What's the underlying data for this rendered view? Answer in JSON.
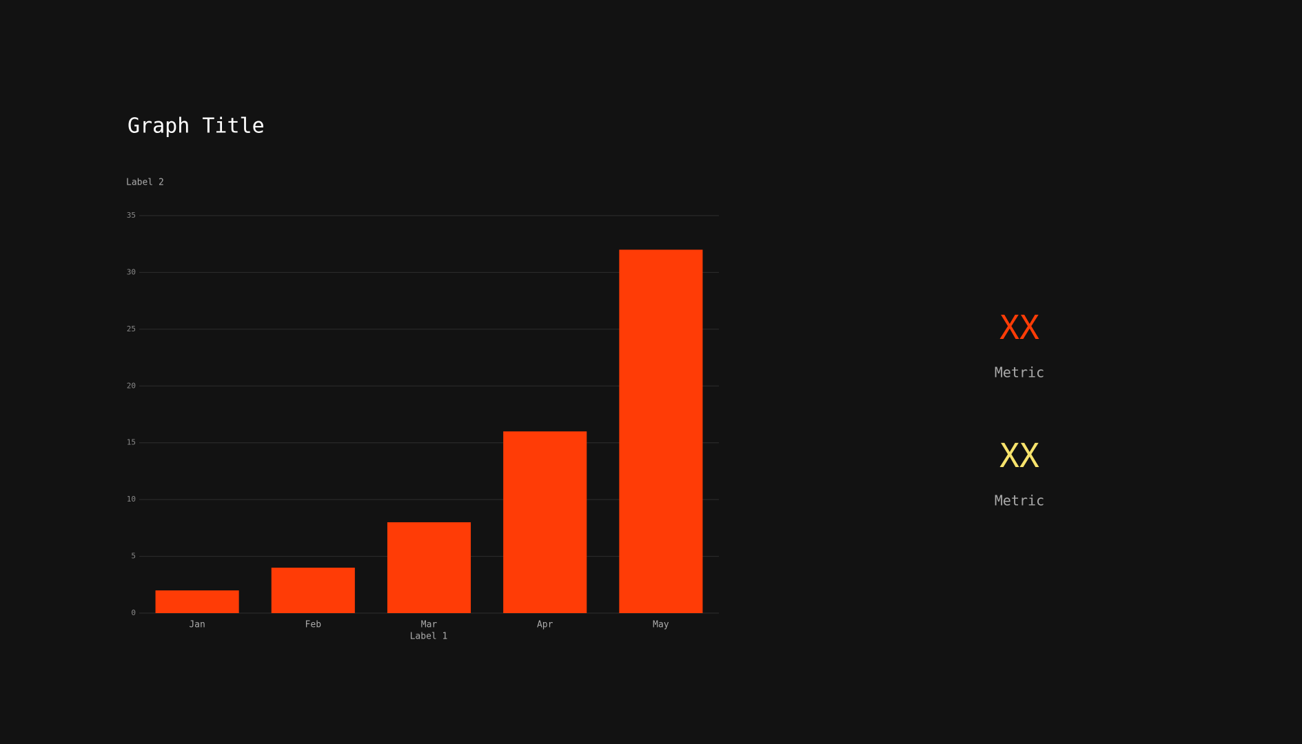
{
  "chart_data": {
    "type": "bar",
    "title": "Graph Title",
    "y_label": "Label 2",
    "x_label": "Label 1",
    "categories": [
      "Jan",
      "Feb",
      "Mar",
      "Apr",
      "May"
    ],
    "values": [
      2,
      4,
      8,
      16,
      32
    ],
    "color": "#ff3c06",
    "ylim": [
      0,
      35
    ],
    "yticks": [
      0,
      5,
      10,
      15,
      20,
      25,
      30,
      35
    ],
    "grid": true
  },
  "metrics": [
    {
      "value": "XX",
      "label": "Metric",
      "color": "#ff3c06"
    },
    {
      "value": "XX",
      "label": "Metric",
      "color": "#f7e36c"
    }
  ]
}
